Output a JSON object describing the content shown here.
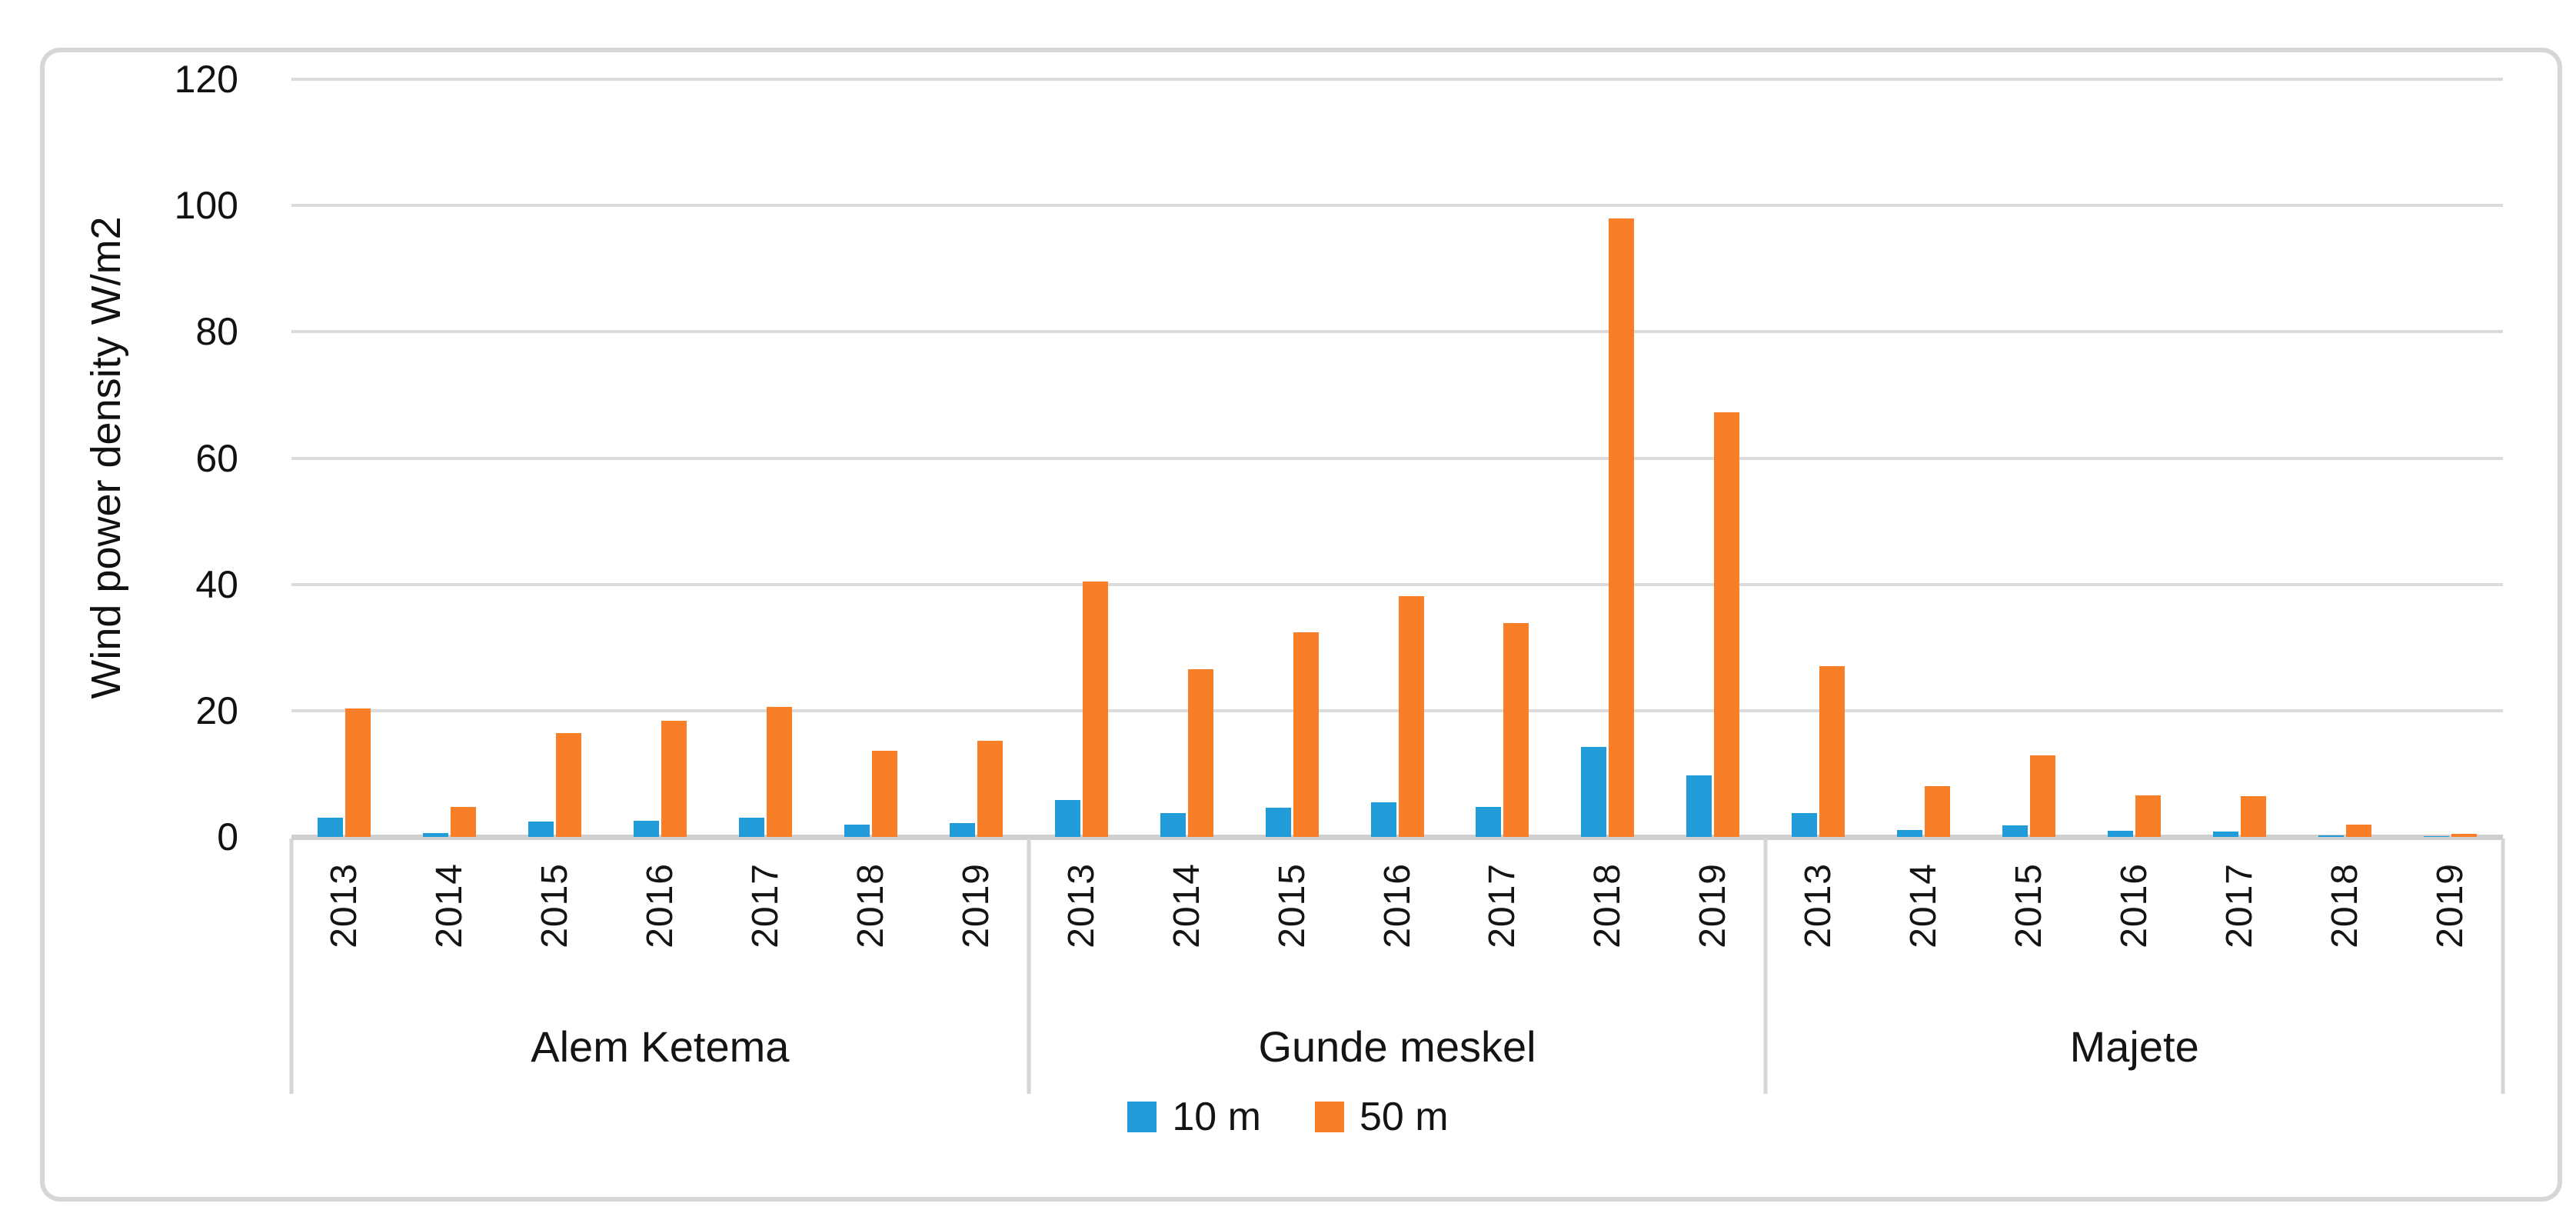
{
  "chart_data": {
    "type": "bar",
    "title": "",
    "ylabel": "Wind power density W/m2",
    "xlabel": "",
    "ylim": [
      0,
      120
    ],
    "yticks": [
      0,
      20,
      40,
      60,
      80,
      100,
      120
    ],
    "grid": "horizontal",
    "legend_position": "bottom-center",
    "groups": [
      "Alem Ketema",
      "Gunde meskel",
      "Majete"
    ],
    "years": [
      "2013",
      "2014",
      "2015",
      "2016",
      "2017",
      "2018",
      "2019"
    ],
    "series": [
      {
        "name": "10 m",
        "color": "#219CD9",
        "values": {
          "Alem Ketema": [
            3.0,
            0.6,
            2.4,
            2.6,
            3.0,
            2.0,
            2.2
          ],
          "Gunde meskel": [
            5.8,
            3.8,
            4.6,
            5.5,
            4.7,
            14.2,
            9.7
          ],
          "Majete": [
            3.8,
            1.1,
            1.8,
            1.0,
            0.9,
            0.2,
            0.1
          ]
        }
      },
      {
        "name": "50 m",
        "color": "#F87E27",
        "values": {
          "Alem Ketema": [
            20.3,
            4.7,
            16.4,
            18.4,
            20.6,
            13.6,
            15.2
          ],
          "Gunde meskel": [
            40.4,
            26.5,
            32.4,
            38.1,
            33.9,
            98.0,
            67.3
          ],
          "Majete": [
            27.0,
            8.0,
            12.9,
            6.6,
            6.4,
            1.9,
            0.5
          ]
        }
      }
    ],
    "axis_colors": {
      "gridline": "#DBDBDB",
      "baseline": "#CFCFCF",
      "divider": "#D6D6D6",
      "figure_border": "#D6D6D6"
    }
  }
}
